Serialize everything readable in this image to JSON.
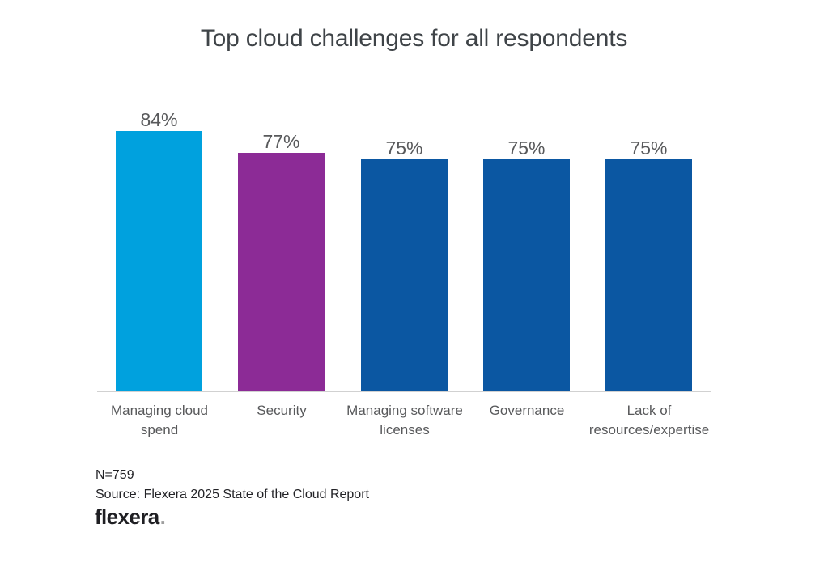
{
  "chart_data": {
    "type": "bar",
    "title": "Top cloud challenges for all respondents",
    "categories": [
      "Managing cloud spend",
      "Security",
      "Managing software licenses",
      "Governance",
      "Lack of resources/expertise"
    ],
    "category_lines": [
      [
        "Managing cloud",
        "spend"
      ],
      [
        "Security"
      ],
      [
        "Managing software",
        "licenses"
      ],
      [
        "Governance"
      ],
      [
        "Lack of",
        "resources/expertise"
      ]
    ],
    "values": [
      84,
      77,
      75,
      75,
      75
    ],
    "value_labels": [
      "84%",
      "77%",
      "75%",
      "75%",
      "75%"
    ],
    "bar_colors": [
      "#00A1DE",
      "#8C2B96",
      "#0B57A2",
      "#0B57A2",
      "#0B57A2"
    ],
    "xlabel": "",
    "ylabel": "",
    "ylim": [
      0,
      100
    ],
    "grid": false,
    "legend": false,
    "value_label_position": "above-bar"
  },
  "footer": {
    "n_label": "N=759",
    "source": "Source: Flexera 2025 State of the Cloud Report",
    "logo_text": "flexera",
    "logo_dot": "."
  },
  "colors": {
    "background": "#FFFFFF",
    "title": "#3F4448",
    "labels": "#58595B",
    "axis_line": "#D1D1D1",
    "footer_text": "#232327",
    "logo": "#1F1F23",
    "logo_dot": "#9E9E9E"
  }
}
